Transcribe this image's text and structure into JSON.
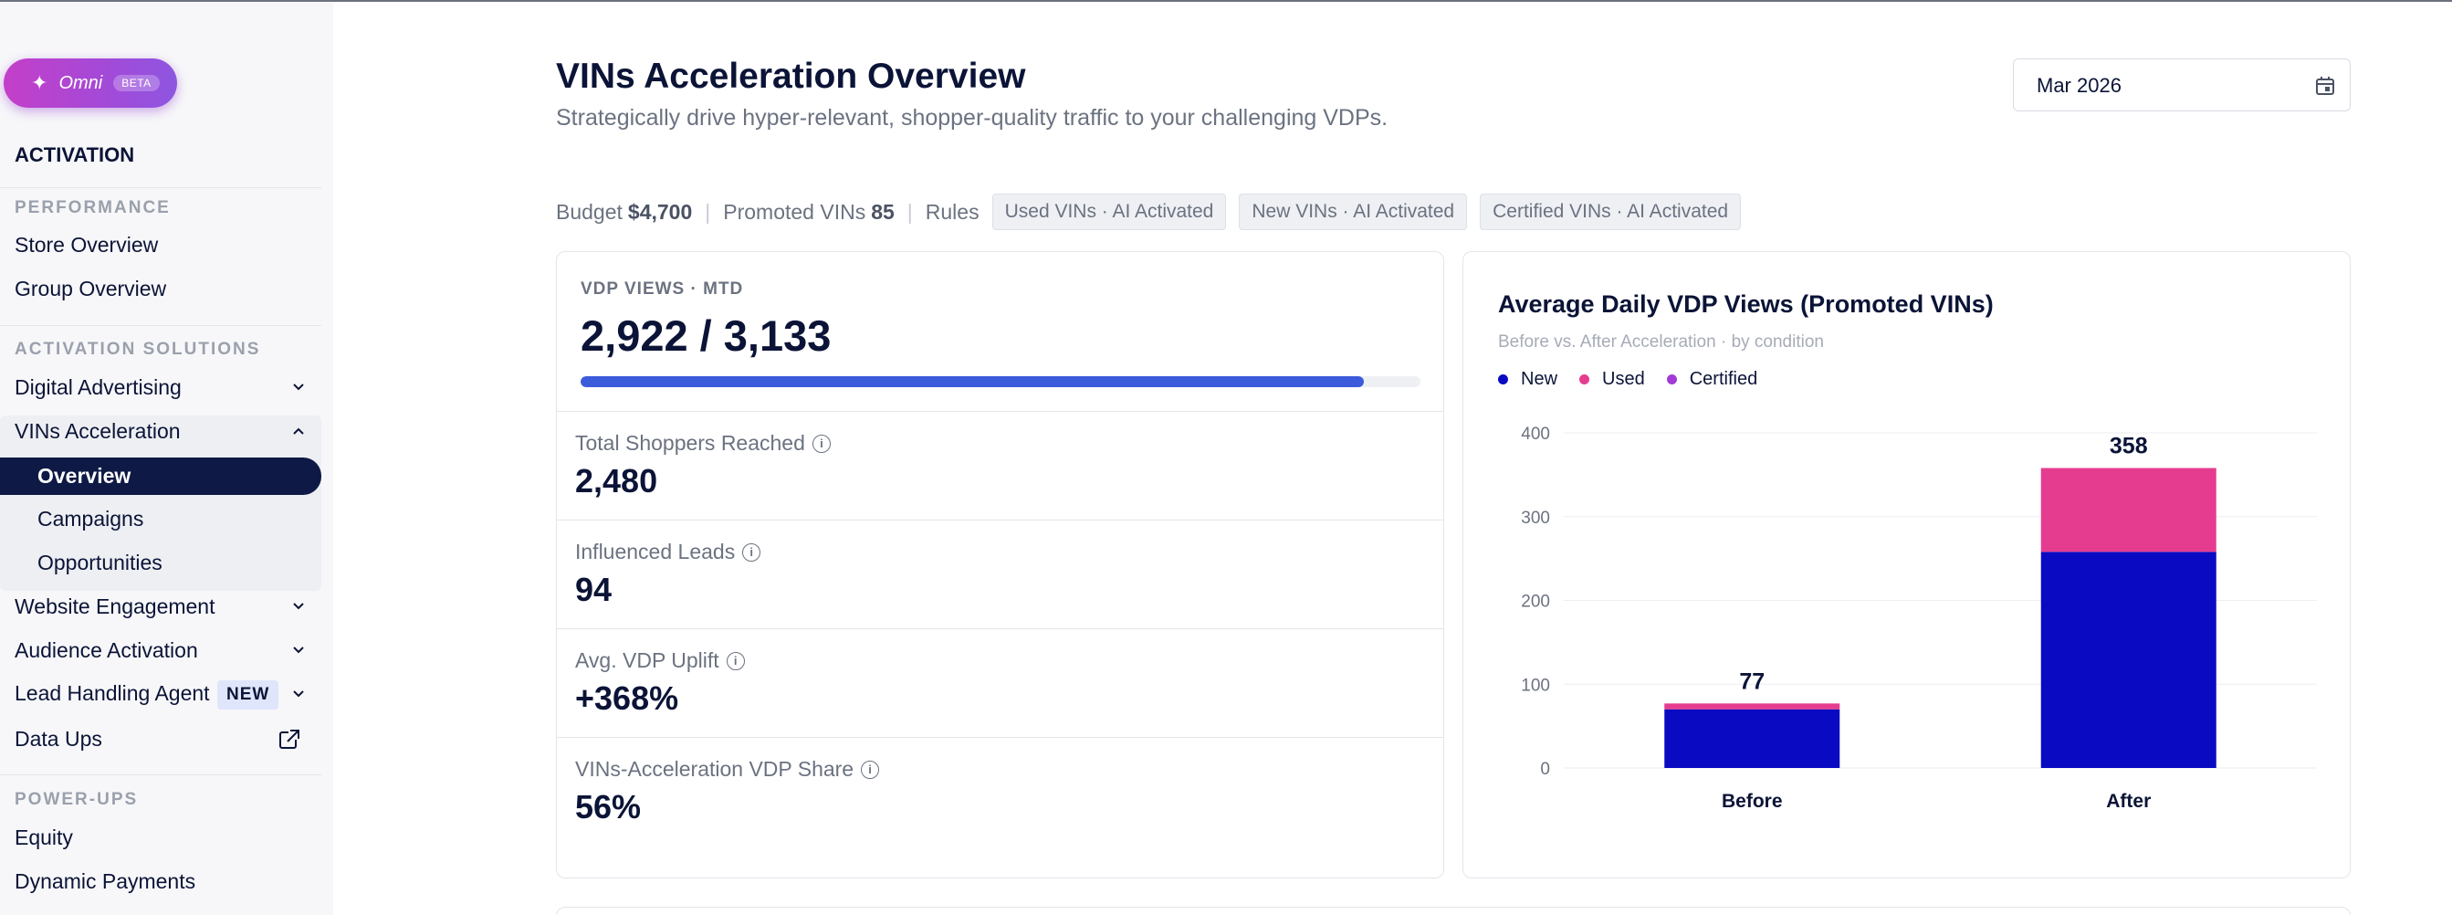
{
  "sidebar": {
    "omni_label": "Omni",
    "omni_badge": "BETA",
    "heading": "ACTIVATION",
    "sections": {
      "performance": "PERFORMANCE",
      "solutions": "ACTIVATION SOLUTIONS",
      "powerups": "POWER-UPS"
    },
    "items": {
      "store_overview": "Store Overview",
      "group_overview": "Group Overview",
      "digital_advertising": "Digital Advertising",
      "vins_acceleration": "VINs Acceleration",
      "overview": "Overview",
      "campaigns": "Campaigns",
      "opportunities": "Opportunities",
      "website_engagement": "Website Engagement",
      "audience_activation": "Audience Activation",
      "lead_handling_agent": "Lead Handling Agent",
      "lead_badge": "NEW",
      "data_ups": "Data Ups",
      "equity": "Equity",
      "dynamic_payments": "Dynamic Payments"
    }
  },
  "header": {
    "title": "VINs Acceleration Overview",
    "subtitle": "Strategically drive hyper-relevant, shopper-quality traffic to your challenging VDPs.",
    "date_value": "Mar 2026"
  },
  "meta": {
    "budget_label": "Budget",
    "budget_value": "$4,700",
    "promoted_label": "Promoted VINs",
    "promoted_value": "85",
    "rules_label": "Rules",
    "chips": [
      "Used VINs · AI Activated",
      "New VINs · AI Activated",
      "Certified VINs · AI Activated"
    ]
  },
  "kpis": {
    "vdp_label": "VDP VIEWS · MTD",
    "vdp_value": "2,922 / 3,133",
    "vdp_progress": 0.933,
    "stats": [
      {
        "label": "Total Shoppers Reached",
        "value": "2,480"
      },
      {
        "label": "Influenced Leads",
        "value": "94"
      },
      {
        "label": "Avg. VDP Uplift",
        "value": "+368%"
      },
      {
        "label": "VINs-Acceleration VDP Share",
        "value": "56%"
      }
    ]
  },
  "chart": {
    "title": "Average Daily VDP Views (Promoted VINs)",
    "subtitle": "Before vs. After Acceleration · by condition",
    "colors": {
      "New": "#0a0ac2",
      "Used": "#e63c8f",
      "Certified": "#a23ad6"
    }
  },
  "chart_data": {
    "type": "bar",
    "stacked": true,
    "title": "Average Daily VDP Views (Promoted VINs)",
    "subtitle": "Before vs. After Acceleration · by condition",
    "categories": [
      "Before",
      "After"
    ],
    "series": [
      {
        "name": "New",
        "values": [
          70,
          258
        ]
      },
      {
        "name": "Used",
        "values": [
          7,
          100
        ]
      },
      {
        "name": "Certified",
        "values": [
          0,
          0
        ]
      }
    ],
    "totals": [
      77,
      358
    ],
    "yticks": [
      0,
      100,
      200,
      300,
      400
    ],
    "ylim": [
      0,
      400
    ],
    "grid": true,
    "legend": "top-left"
  }
}
